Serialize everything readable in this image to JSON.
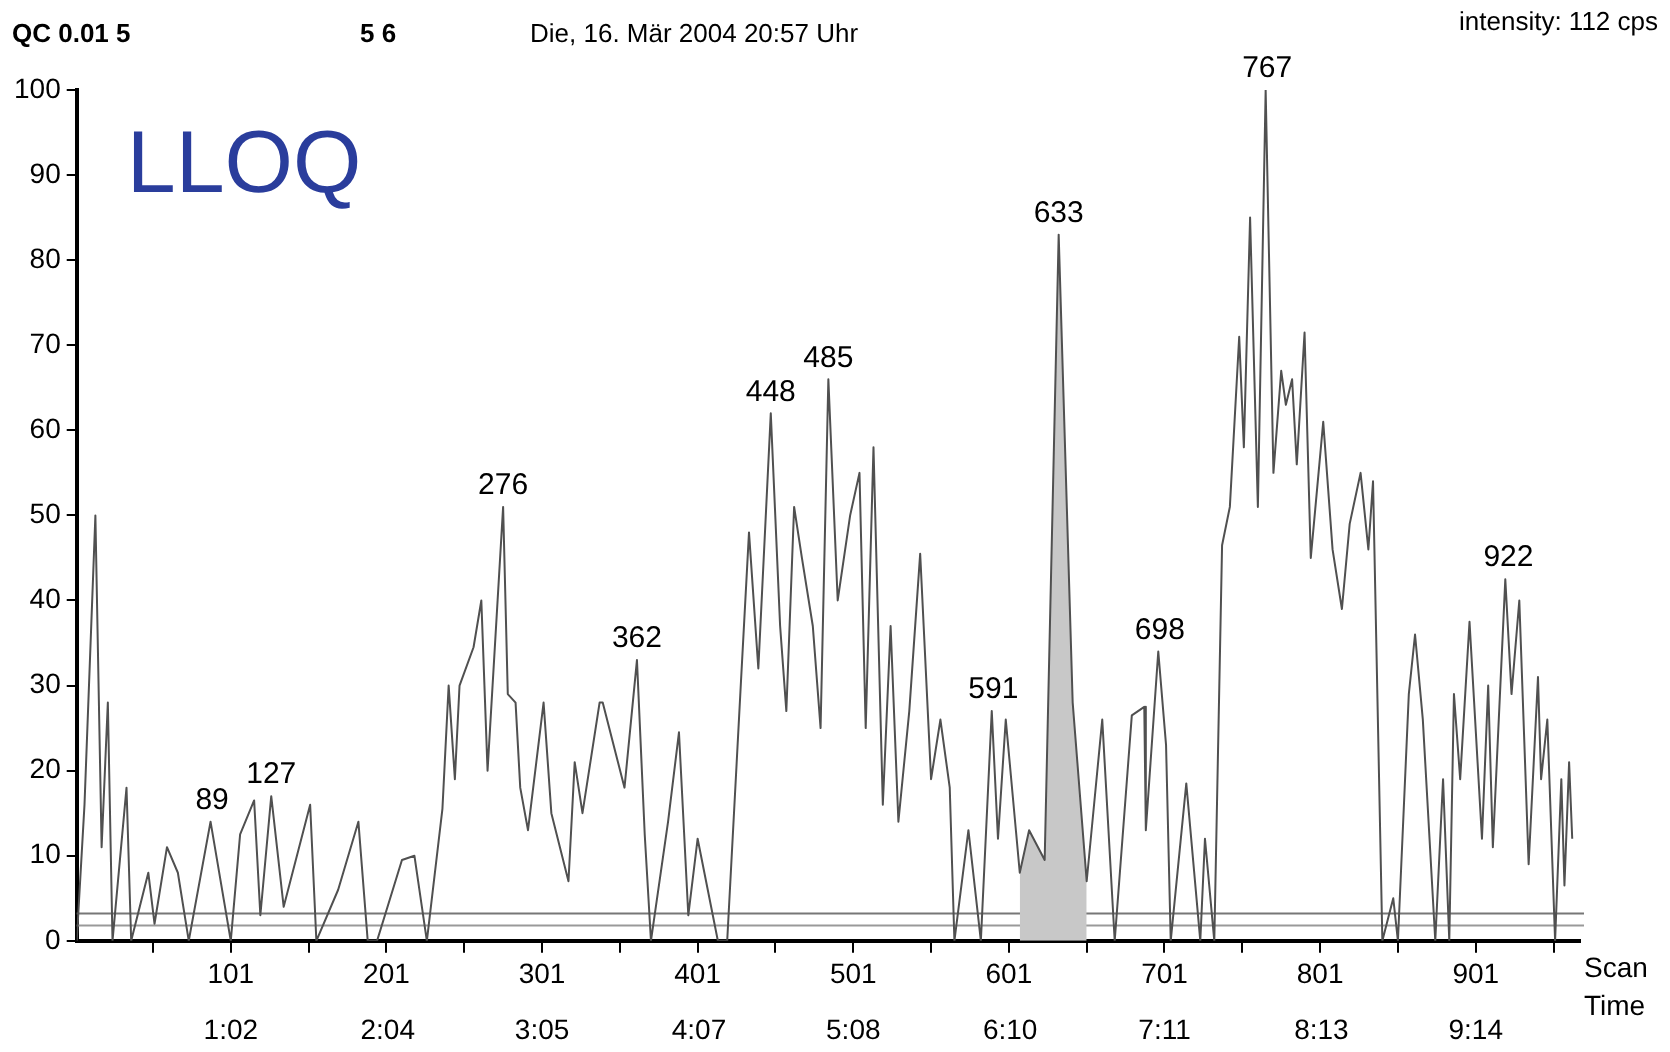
{
  "chart_data": {
    "type": "line",
    "title": "LLOQ",
    "xlabel": "Scan",
    "x2label": "Time",
    "annotations": [
      "QC 0.01 5",
      "5 6",
      "Die, 16. Mär 2004 20:57 Uhr",
      "intensity: 112 cps",
      {
        "text": "89",
        "x": 89,
        "y": 14
      },
      {
        "text": "127",
        "x": 127,
        "y": 17
      },
      {
        "text": "276",
        "x": 276,
        "y": 51
      },
      {
        "text": "362",
        "x": 362,
        "y": 33
      },
      {
        "text": "448",
        "x": 448,
        "y": 62
      },
      {
        "text": "485",
        "x": 485,
        "y": 66
      },
      {
        "text": "591",
        "x": 591,
        "y": 27
      },
      {
        "text": "633",
        "x": 633,
        "y": 83
      },
      {
        "text": "698",
        "x": 698,
        "y": 34
      },
      {
        "text": "767",
        "x": 767,
        "y": 100
      },
      {
        "text": "922",
        "x": 922,
        "y": 42.5
      }
    ],
    "series": [
      {
        "type": "line",
        "color": "#505050",
        "x": [
          2,
          7,
          14,
          18,
          22,
          25,
          34,
          37,
          48,
          52,
          60,
          67,
          74,
          88,
          101,
          107,
          116,
          120,
          127,
          135,
          152,
          156,
          170,
          183,
          189,
          195,
          211,
          219,
          227,
          237,
          241,
          245,
          248,
          257,
          262,
          266,
          276,
          279,
          284,
          287,
          292,
          302,
          307,
          318,
          322,
          327,
          338,
          340,
          354,
          362,
          367,
          371,
          382,
          389,
          395,
          401,
          414,
          420,
          429,
          434,
          440,
          448,
          454,
          458,
          463,
          468,
          475,
          480,
          485,
          491,
          499,
          505,
          509,
          514,
          520,
          525,
          530,
          537,
          544,
          551,
          557,
          563,
          566,
          575,
          583,
          590,
          594,
          599,
          608,
          614,
          624,
          633,
          642,
          651,
          661,
          669,
          680,
          688,
          689,
          697,
          702,
          705,
          715,
          724,
          727,
          733,
          738,
          743,
          749,
          752,
          756,
          761,
          766,
          771,
          776,
          779,
          783,
          786,
          791,
          795,
          803,
          809,
          815,
          820,
          827,
          832,
          835,
          841,
          848,
          851,
          858,
          862,
          867,
          875,
          880,
          884,
          887,
          891,
          897,
          905,
          909,
          912,
          920,
          924,
          929,
          935,
          941,
          943,
          947,
          952,
          956,
          958,
          961,
          963
        ],
        "values": [
          0,
          16,
          50,
          11,
          28,
          0,
          18,
          0,
          8,
          2,
          11,
          8,
          0,
          14,
          0,
          12.5,
          16.5,
          3,
          17,
          4,
          16,
          0,
          6,
          14,
          0,
          0,
          9.5,
          10,
          0,
          15.5,
          30,
          19,
          30,
          34.5,
          40,
          20,
          51,
          29,
          28,
          18,
          13,
          28,
          15,
          7,
          21,
          15,
          28,
          28,
          18,
          33,
          12.5,
          0,
          14,
          24.5,
          3,
          12,
          0,
          0,
          31,
          48,
          32,
          62,
          37,
          27,
          51,
          45,
          37,
          25,
          66,
          40,
          50,
          55,
          25,
          58,
          16,
          37,
          14,
          27,
          45.5,
          19,
          26,
          18,
          0,
          13,
          0,
          27,
          12,
          26,
          8,
          13,
          9.5,
          83,
          28,
          7,
          26,
          0,
          26.5,
          27.5,
          13,
          34,
          23,
          0,
          18.5,
          0,
          12,
          0,
          46.5,
          51,
          71,
          58,
          85,
          51,
          100,
          55,
          67,
          63,
          66,
          56,
          71.5,
          45,
          61,
          46,
          39,
          49,
          55,
          46,
          54,
          0,
          5,
          0,
          29,
          36,
          26,
          0,
          19,
          0,
          29,
          19,
          37.5,
          12,
          30,
          11,
          42.5,
          29,
          40,
          9,
          31,
          19,
          26,
          0,
          19,
          6.5,
          21,
          12
        ]
      },
      {
        "type": "area",
        "color": "#c8c8c8",
        "x": [
          608,
          614,
          624,
          633,
          642,
          651
        ],
        "values": [
          8,
          13,
          9.5,
          83,
          28,
          7
        ]
      }
    ],
    "xlim": [
      2,
      968
    ],
    "xticks": [
      {
        "value": 51,
        "label": null
      },
      101,
      {
        "value": 151,
        "label": null
      },
      201,
      {
        "value": 251,
        "label": null
      },
      301,
      {
        "value": 351,
        "label": null
      },
      401,
      {
        "value": 451,
        "label": null
      },
      501,
      {
        "value": 551,
        "label": null
      },
      601,
      {
        "value": 651,
        "label": null
      },
      701,
      {
        "value": 751,
        "label": null
      },
      801,
      {
        "value": 851,
        "label": null
      },
      901,
      {
        "value": 951,
        "label": null
      }
    ],
    "x2lim": [
      0.018,
      9.92
    ],
    "x2ticks": [
      {
        "value": 1.0333,
        "label": "1:02"
      },
      {
        "value": 2.0667,
        "label": "2:04"
      },
      {
        "value": 3.0833,
        "label": "3:05"
      },
      {
        "value": 4.1167,
        "label": "4:07"
      },
      {
        "value": 5.1333,
        "label": "5:08"
      },
      {
        "value": 6.1667,
        "label": "6:10"
      },
      {
        "value": 7.1833,
        "label": "7:11"
      },
      {
        "value": 8.2167,
        "label": "8:13"
      },
      {
        "value": 9.2333,
        "label": "9:14"
      }
    ],
    "ylim": [
      0,
      100
    ],
    "yticks": [
      0,
      10,
      20,
      30,
      40,
      50,
      60,
      70,
      80,
      90,
      100
    ],
    "ref_lines": [
      {
        "axis": "y",
        "value": 1.8,
        "color": "#999999"
      },
      {
        "axis": "y",
        "value": 3.2,
        "color": "#777777"
      }
    ],
    "grid": false,
    "legend": false,
    "marker": "none",
    "line_style": "solid"
  }
}
